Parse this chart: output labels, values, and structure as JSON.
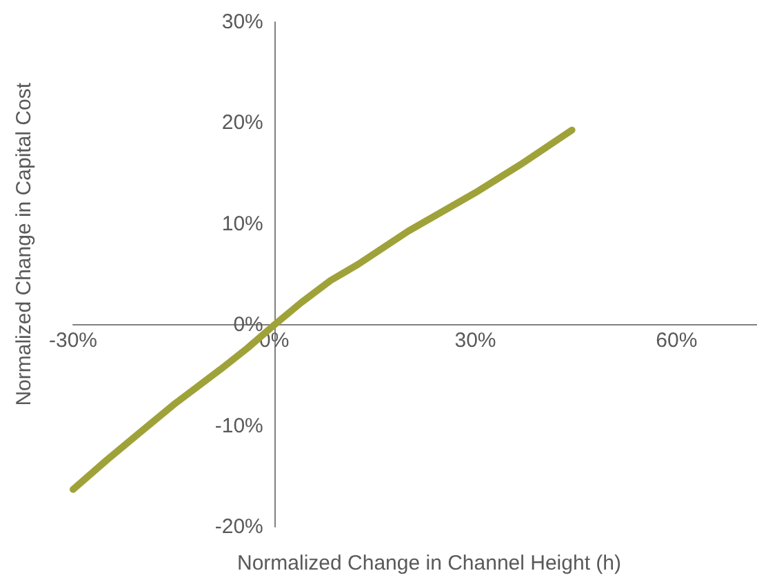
{
  "chart_data": {
    "type": "line",
    "xlabel": "Normalized Change in Channel Height (h)",
    "ylabel": "Normalized Change in Capital Cost",
    "series": [
      {
        "color": "#9fa239",
        "x": [
          -30,
          -25,
          -20.3,
          -15,
          -8,
          -4,
          0,
          4,
          8.4,
          12.5,
          20,
          30,
          37,
          44.4
        ],
        "values": [
          -16.3,
          -13.4,
          -10.8,
          -7.9,
          -4.4,
          -2.3,
          0,
          2.2,
          4.4,
          6.0,
          9.3,
          13.1,
          16.0,
          19.3
        ]
      }
    ],
    "xlim": [
      -30,
      72
    ],
    "xticks": [
      {
        "value": -30,
        "label": "-30%"
      },
      {
        "value": 0,
        "label": "0%"
      },
      {
        "value": 30,
        "label": "30%"
      },
      {
        "value": 60,
        "label": "60%"
      }
    ],
    "ylim": [
      -20,
      30
    ],
    "yticks": [
      {
        "value": -20,
        "label": "-20%"
      },
      {
        "value": -10,
        "label": "-10%"
      },
      {
        "value": 0,
        "label": "0%"
      },
      {
        "value": 10,
        "label": "10%"
      },
      {
        "value": 20,
        "label": "20%"
      },
      {
        "value": 30,
        "label": "30%"
      }
    ],
    "grid": false,
    "marker": "none",
    "line_style": "solid"
  }
}
